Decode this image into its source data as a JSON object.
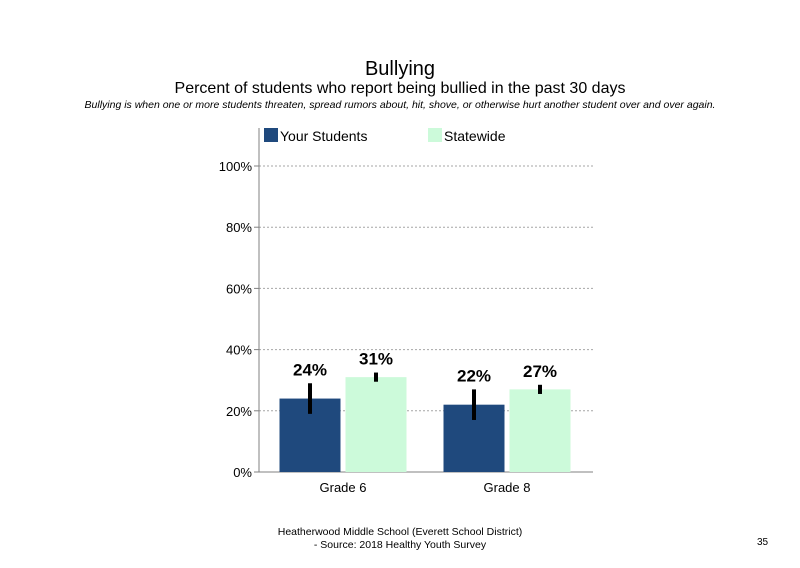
{
  "title": "Bullying",
  "subtitle": "Percent of students who report being bullied in the past 30 days",
  "note": "Bullying is when one or more students threaten, spread rumors about, hit, shove, or otherwise hurt another student over and over again.",
  "footer": {
    "line1": "Heatherwood Middle School (Everett School District)",
    "line2": "- Source: 2018 Healthy Youth Survey"
  },
  "page_number": "35",
  "colors": {
    "your_students": "#1F497D",
    "statewide": "#CCFADA",
    "grid": "#A6A6A6",
    "axis": "#808080"
  },
  "chart_data": {
    "type": "bar",
    "categories": [
      "Grade 6",
      "Grade 8"
    ],
    "series": [
      {
        "name": "Your Students",
        "values": [
          24,
          22
        ],
        "labels": [
          "24%",
          "22%"
        ],
        "error_low": [
          19,
          17
        ],
        "error_high": [
          29,
          27
        ]
      },
      {
        "name": "Statewide",
        "values": [
          31,
          27
        ],
        "labels": [
          "31%",
          "27%"
        ],
        "error_low": [
          29.5,
          25.5
        ],
        "error_high": [
          32.5,
          28.5
        ]
      }
    ],
    "yticks": [
      "0%",
      "20%",
      "40%",
      "60%",
      "80%",
      "100%"
    ],
    "ylim": [
      0,
      100
    ],
    "grid": true,
    "legend": "top",
    "xlabel": "",
    "ylabel": ""
  }
}
